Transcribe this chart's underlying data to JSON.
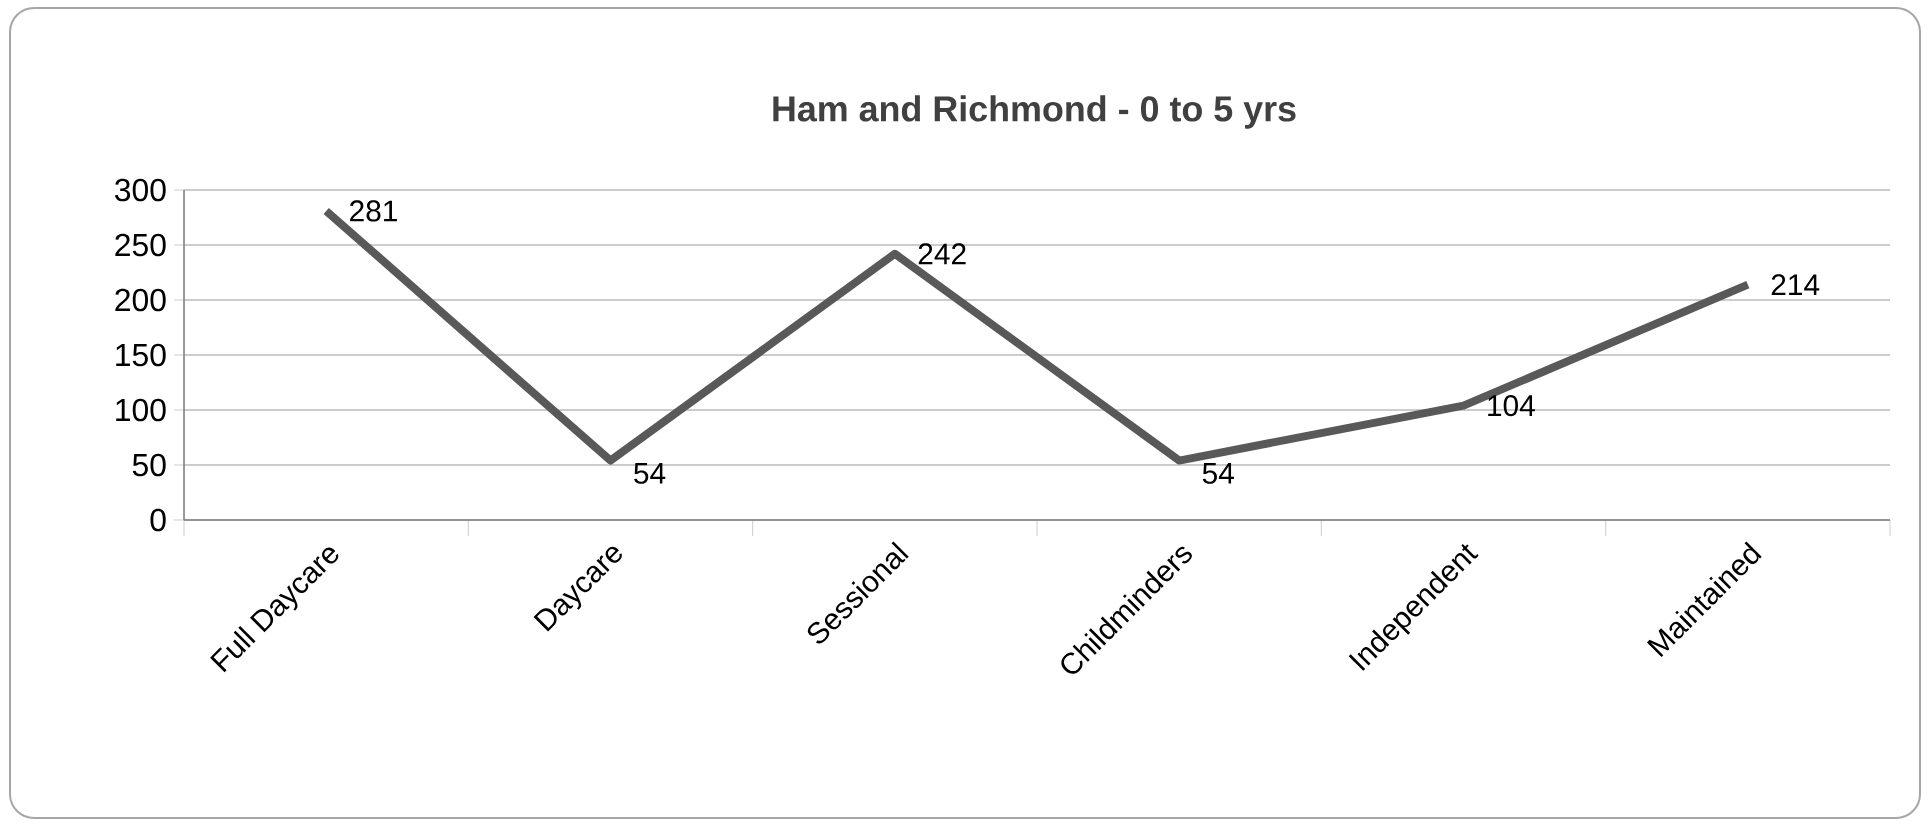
{
  "chart_data": {
    "type": "line",
    "title": "Ham and Richmond - 0 to 5 yrs",
    "categories": [
      "Full Daycare",
      "Daycare",
      "Sessional",
      "Childminders",
      "Independent",
      "Maintained"
    ],
    "values": [
      281,
      54,
      242,
      54,
      104,
      214
    ],
    "color": "#595959",
    "ylim": [
      0,
      300
    ],
    "yticks": [
      0,
      50,
      100,
      150,
      200,
      250,
      300
    ],
    "grid": "y",
    "data_labels": true,
    "marker": "none",
    "line_style": "solid"
  }
}
